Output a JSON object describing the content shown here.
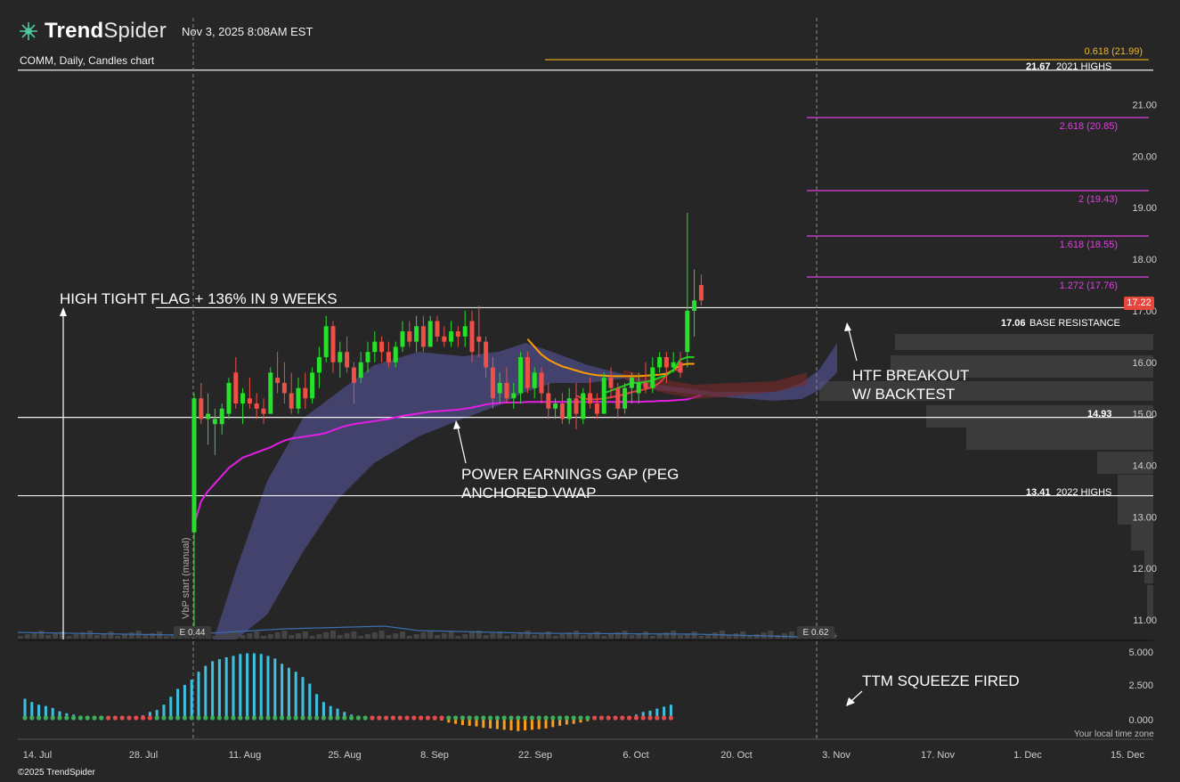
{
  "header": {
    "brand_bold": "Trend",
    "brand_light": "Spider",
    "timestamp": "Nov 3, 2025 8:08AM EST",
    "subtitle": "COMM, Daily, Candles chart",
    "timezone_note": "Your local time zone",
    "copyright": "©2025 TrendSpider"
  },
  "colors": {
    "background": "#262626",
    "up": "#26e02a",
    "down": "#ef4f47",
    "vwap": "#e51ee5",
    "ema_fast": "#1fd11f",
    "ema_mid": "#ff9d00",
    "ema_slow": "#e04040",
    "cloud": "#5a5aa8",
    "fib": "#e040e0",
    "squeeze_pos": "#3ec1e0",
    "squeeze_neg": "#ff9d1a"
  },
  "chart_data": [
    {
      "type": "candlestick",
      "title": "COMM, Daily, Candles chart",
      "x_ticks": [
        "14. Jul",
        "28. Jul",
        "11. Aug",
        "25. Aug",
        "8. Sep",
        "22. Sep",
        "6. Oct",
        "20. Oct",
        "3. Nov",
        "17. Nov",
        "1. Dec",
        "15. Dec"
      ],
      "y_ticks": [
        "11.00",
        "12.00",
        "13.00",
        "14.00",
        "15.00",
        "16.00",
        "17.00",
        "18.00",
        "19.00",
        "20.00",
        "21.00"
      ],
      "ylim": [
        10.6,
        22.4
      ],
      "last_price": "17.22",
      "candles": [
        {
          "o": 12.7,
          "h": 15.4,
          "l": 10.8,
          "c": 15.3
        },
        {
          "o": 15.3,
          "h": 15.6,
          "l": 14.8,
          "c": 14.9
        },
        {
          "o": 14.9,
          "h": 15.4,
          "l": 14.4,
          "c": 15.0
        },
        {
          "o": 14.8,
          "h": 15.1,
          "l": 14.2,
          "c": 14.9
        },
        {
          "o": 14.8,
          "h": 15.2,
          "l": 14.6,
          "c": 15.1
        },
        {
          "o": 15.0,
          "h": 15.7,
          "l": 14.9,
          "c": 15.6
        },
        {
          "o": 15.8,
          "h": 16.1,
          "l": 15.1,
          "c": 15.2
        },
        {
          "o": 15.2,
          "h": 15.5,
          "l": 14.8,
          "c": 15.4
        },
        {
          "o": 15.3,
          "h": 15.7,
          "l": 15.1,
          "c": 15.2
        },
        {
          "o": 15.2,
          "h": 15.4,
          "l": 14.9,
          "c": 15.1
        },
        {
          "o": 15.1,
          "h": 15.3,
          "l": 14.8,
          "c": 15.0
        },
        {
          "o": 15.0,
          "h": 15.9,
          "l": 15.0,
          "c": 15.8
        },
        {
          "o": 15.7,
          "h": 16.2,
          "l": 15.4,
          "c": 15.6
        },
        {
          "o": 15.6,
          "h": 16.0,
          "l": 15.2,
          "c": 15.4
        },
        {
          "o": 15.4,
          "h": 15.8,
          "l": 15.0,
          "c": 15.1
        },
        {
          "o": 15.1,
          "h": 15.7,
          "l": 15.0,
          "c": 15.5
        },
        {
          "o": 15.5,
          "h": 15.8,
          "l": 15.1,
          "c": 15.3
        },
        {
          "o": 15.3,
          "h": 15.9,
          "l": 15.2,
          "c": 15.8
        },
        {
          "o": 15.8,
          "h": 16.3,
          "l": 15.5,
          "c": 16.1
        },
        {
          "o": 16.1,
          "h": 16.9,
          "l": 16.0,
          "c": 16.7
        },
        {
          "o": 16.7,
          "h": 16.8,
          "l": 15.8,
          "c": 16.0
        },
        {
          "o": 16.0,
          "h": 16.4,
          "l": 15.7,
          "c": 16.2
        },
        {
          "o": 16.2,
          "h": 16.5,
          "l": 15.8,
          "c": 15.9
        },
        {
          "o": 15.9,
          "h": 16.0,
          "l": 15.2,
          "c": 15.6
        },
        {
          "o": 15.7,
          "h": 16.2,
          "l": 15.6,
          "c": 16.0
        },
        {
          "o": 16.0,
          "h": 16.4,
          "l": 15.8,
          "c": 16.2
        },
        {
          "o": 16.2,
          "h": 16.6,
          "l": 16.0,
          "c": 16.4
        },
        {
          "o": 16.4,
          "h": 16.5,
          "l": 16.0,
          "c": 16.2
        },
        {
          "o": 16.2,
          "h": 16.4,
          "l": 15.9,
          "c": 16.0
        },
        {
          "o": 16.0,
          "h": 16.4,
          "l": 15.9,
          "c": 16.3
        },
        {
          "o": 16.3,
          "h": 16.8,
          "l": 16.2,
          "c": 16.6
        },
        {
          "o": 16.6,
          "h": 16.8,
          "l": 16.3,
          "c": 16.4
        },
        {
          "o": 16.4,
          "h": 16.9,
          "l": 16.2,
          "c": 16.7
        },
        {
          "o": 16.7,
          "h": 16.9,
          "l": 16.2,
          "c": 16.3
        },
        {
          "o": 16.3,
          "h": 16.9,
          "l": 16.3,
          "c": 16.8
        },
        {
          "o": 16.8,
          "h": 16.9,
          "l": 16.4,
          "c": 16.5
        },
        {
          "o": 16.5,
          "h": 16.7,
          "l": 16.3,
          "c": 16.4
        },
        {
          "o": 16.4,
          "h": 16.8,
          "l": 16.3,
          "c": 16.6
        },
        {
          "o": 16.6,
          "h": 16.7,
          "l": 16.3,
          "c": 16.5
        },
        {
          "o": 16.5,
          "h": 17.0,
          "l": 16.3,
          "c": 16.7
        },
        {
          "o": 16.8,
          "h": 17.0,
          "l": 16.0,
          "c": 16.2
        },
        {
          "o": 16.5,
          "h": 17.1,
          "l": 16.1,
          "c": 16.4
        },
        {
          "o": 16.4,
          "h": 16.5,
          "l": 15.7,
          "c": 15.9
        },
        {
          "o": 15.9,
          "h": 16.1,
          "l": 15.1,
          "c": 15.3
        },
        {
          "o": 15.4,
          "h": 15.8,
          "l": 15.2,
          "c": 15.6
        },
        {
          "o": 15.6,
          "h": 15.9,
          "l": 15.2,
          "c": 15.3
        },
        {
          "o": 15.3,
          "h": 15.6,
          "l": 15.1,
          "c": 15.4
        },
        {
          "o": 15.4,
          "h": 16.2,
          "l": 15.2,
          "c": 16.1
        },
        {
          "o": 16.1,
          "h": 16.2,
          "l": 15.4,
          "c": 15.5
        },
        {
          "o": 15.5,
          "h": 15.9,
          "l": 15.3,
          "c": 15.8
        },
        {
          "o": 15.8,
          "h": 15.9,
          "l": 15.2,
          "c": 15.4
        },
        {
          "o": 15.4,
          "h": 15.6,
          "l": 14.9,
          "c": 15.1
        },
        {
          "o": 15.1,
          "h": 15.3,
          "l": 14.9,
          "c": 15.2
        },
        {
          "o": 15.2,
          "h": 15.4,
          "l": 14.8,
          "c": 14.9
        },
        {
          "o": 14.9,
          "h": 15.5,
          "l": 14.8,
          "c": 15.3
        },
        {
          "o": 15.3,
          "h": 15.6,
          "l": 14.7,
          "c": 15.0
        },
        {
          "o": 14.9,
          "h": 15.5,
          "l": 14.8,
          "c": 15.4
        },
        {
          "o": 15.4,
          "h": 15.7,
          "l": 15.1,
          "c": 15.2
        },
        {
          "o": 15.2,
          "h": 15.4,
          "l": 14.9,
          "c": 15.0
        },
        {
          "o": 15.0,
          "h": 15.8,
          "l": 15.0,
          "c": 15.7
        },
        {
          "o": 15.7,
          "h": 15.9,
          "l": 15.3,
          "c": 15.5
        },
        {
          "o": 15.5,
          "h": 15.6,
          "l": 14.9,
          "c": 15.1
        },
        {
          "o": 15.1,
          "h": 15.6,
          "l": 15.0,
          "c": 15.5
        },
        {
          "o": 15.5,
          "h": 15.8,
          "l": 15.2,
          "c": 15.7
        },
        {
          "o": 15.4,
          "h": 15.8,
          "l": 15.2,
          "c": 15.6
        },
        {
          "o": 15.6,
          "h": 16.0,
          "l": 15.4,
          "c": 15.5
        },
        {
          "o": 15.5,
          "h": 16.1,
          "l": 15.4,
          "c": 15.9
        },
        {
          "o": 15.9,
          "h": 16.2,
          "l": 15.8,
          "c": 16.1
        },
        {
          "o": 16.1,
          "h": 16.2,
          "l": 15.6,
          "c": 15.9
        },
        {
          "o": 15.9,
          "h": 16.2,
          "l": 15.8,
          "c": 16.0
        },
        {
          "o": 16.0,
          "h": 16.2,
          "l": 15.7,
          "c": 15.8
        },
        {
          "o": 16.2,
          "h": 18.9,
          "l": 15.9,
          "c": 17.0
        },
        {
          "o": 17.0,
          "h": 17.8,
          "l": 16.5,
          "c": 17.2
        },
        {
          "o": 17.5,
          "h": 17.7,
          "l": 17.1,
          "c": 17.2
        }
      ],
      "candle_x_start": 218,
      "candle_x_step": 7.8,
      "overlays": {
        "vwap": [
          12.85,
          13.3,
          13.5,
          13.65,
          13.8,
          13.95,
          14.05,
          14.15,
          14.2,
          14.25,
          14.3,
          14.35,
          14.42,
          14.48,
          14.52,
          14.54,
          14.56,
          14.58,
          14.6,
          14.63,
          14.68,
          14.73,
          14.77,
          14.8,
          14.82,
          14.84,
          14.86,
          14.88,
          14.9,
          14.93,
          14.96,
          14.98,
          15.0,
          15.02,
          15.04,
          15.05,
          15.06,
          15.07,
          15.08,
          15.1,
          15.12,
          15.15,
          15.18,
          15.2,
          15.21,
          15.22,
          15.22,
          15.22,
          15.23,
          15.23,
          15.23,
          15.23,
          15.23,
          15.23,
          15.23,
          15.23,
          15.23,
          15.23,
          15.23,
          15.23,
          15.23,
          15.23,
          15.23,
          15.23,
          15.23,
          15.24,
          15.24,
          15.25,
          15.25,
          15.26,
          15.27,
          15.28,
          15.32,
          15.36
        ],
        "ema_fast_start": 59,
        "ema_fast": [
          15.4,
          15.45,
          15.5,
          15.55,
          15.6,
          15.6,
          15.62,
          15.65,
          15.7,
          15.75,
          15.85,
          16.05,
          16.1,
          16.1
        ],
        "ema_mid_start": 48,
        "ema_mid": [
          16.45,
          16.3,
          16.15,
          16.05,
          15.98,
          15.92,
          15.88,
          15.84,
          15.8,
          15.77,
          15.75,
          15.74,
          15.73,
          15.73,
          15.73,
          15.73,
          15.73,
          15.74,
          15.75,
          15.76,
          15.78,
          15.85,
          15.95,
          15.97,
          15.97
        ],
        "ema_slow_start": 55,
        "ema_slow": [
          15.35,
          15.3,
          15.28,
          15.28,
          15.3,
          15.32,
          15.35,
          15.38,
          15.42,
          15.45,
          15.48,
          15.52,
          15.6,
          15.75,
          15.85,
          15.85
        ]
      },
      "horizontal_levels": [
        {
          "price": 21.99,
          "label": "0.618 (21.99)",
          "kind": "fib-gold"
        },
        {
          "price": 21.67,
          "label": "2021 HIGHS",
          "value_label": "21.67"
        },
        {
          "price": 20.85,
          "label": "2.618 (20.85)",
          "kind": "fib"
        },
        {
          "price": 19.43,
          "label": "2 (19.43)",
          "kind": "fib"
        },
        {
          "price": 18.55,
          "label": "1.618 (18.55)",
          "kind": "fib"
        },
        {
          "price": 17.76,
          "label": "1.272 (17.76)",
          "kind": "fib"
        },
        {
          "price": 17.06,
          "label": "BASE RESISTANCE",
          "value_label": "17.06"
        },
        {
          "price": 14.93,
          "label": "14.93",
          "value_label": ""
        },
        {
          "price": 13.41,
          "label": "2022 HIGHS",
          "value_label": "13.41"
        }
      ],
      "annotations": [
        "HIGH TIGHT FLAG + 136% IN 9 WEEKS",
        "POWER EARNINGS GAP (PEG",
        "ANCHORED VWAP",
        "HTF BREAKOUT",
        "W/ BACKTEST",
        "VbP start (manual)",
        "E 0.44",
        "E 0.62"
      ]
    },
    {
      "type": "bar",
      "title": "",
      "y_ticks": [
        "0.000",
        "2.500",
        "5.000"
      ],
      "ylim": [
        -1.2,
        5.5
      ],
      "annotation": "TTM SQUEEZE FIRED",
      "x_start": 28,
      "x_step": 7.8,
      "values": [
        1.45,
        1.2,
        1.0,
        0.9,
        0.75,
        0.5,
        0.35,
        0.25,
        0.15,
        0.05,
        -0.05,
        -0.1,
        -0.15,
        -0.15,
        -0.1,
        0.05,
        0.1,
        0.2,
        0.45,
        0.6,
        1.0,
        1.6,
        2.2,
        2.5,
        2.9,
        3.5,
        3.95,
        4.3,
        4.45,
        4.6,
        4.7,
        4.85,
        4.9,
        4.9,
        4.85,
        4.7,
        4.5,
        4.1,
        3.8,
        3.5,
        3.1,
        2.6,
        1.8,
        1.2,
        0.9,
        0.7,
        0.45,
        0.25,
        0.15,
        0.05,
        -0.05,
        -0.05,
        -0.05,
        -0.05,
        -0.05,
        -0.1,
        -0.1,
        -0.1,
        -0.1,
        -0.15,
        -0.2,
        -0.35,
        -0.45,
        -0.55,
        -0.6,
        -0.65,
        -0.75,
        -0.8,
        -0.85,
        -0.9,
        -0.95,
        -1.0,
        -0.95,
        -0.9,
        -0.85,
        -0.8,
        -0.7,
        -0.6,
        -0.5,
        -0.45,
        -0.35,
        -0.25,
        -0.15,
        -0.1,
        -0.05,
        0.0,
        0.05,
        0.1,
        0.25,
        0.45,
        0.55,
        0.7,
        0.85,
        1.0
      ],
      "dot_colors": "green when squeeze off, red when squeeze on"
    }
  ]
}
